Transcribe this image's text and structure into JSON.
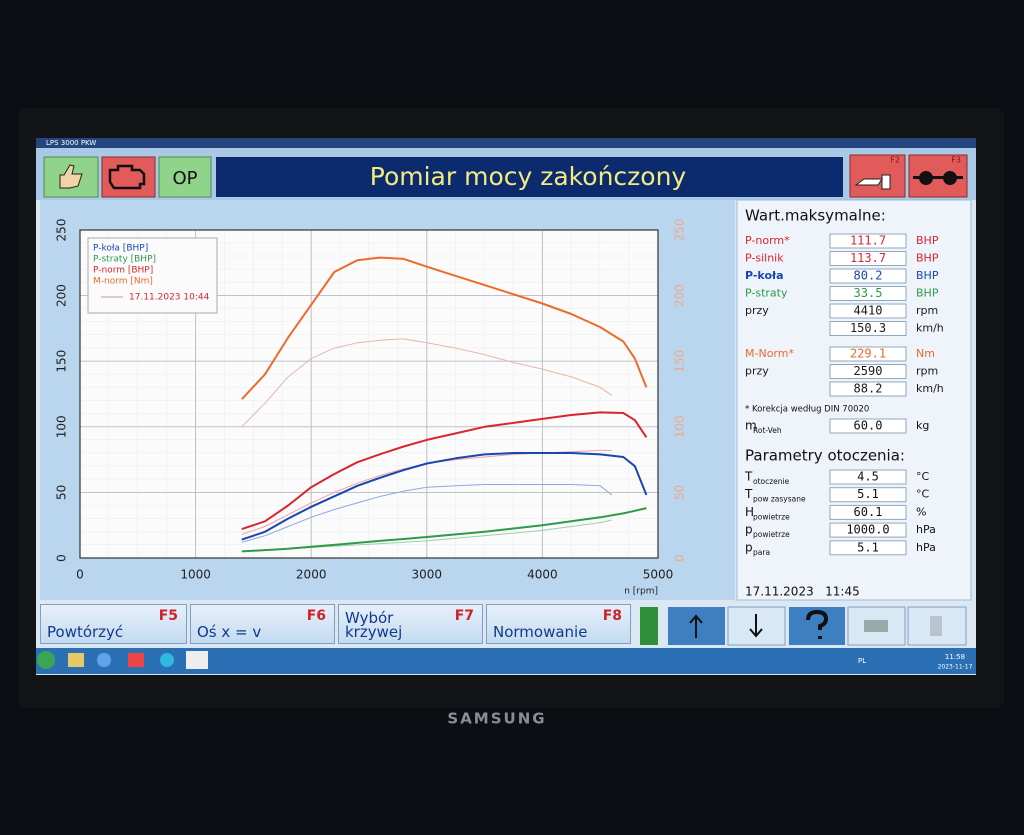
{
  "window": {
    "title": "LPS 3000 PKW"
  },
  "toolbar": {
    "op_button": "OP",
    "title": "Pomiar mocy zakończony",
    "f2": "F2",
    "f3": "F3"
  },
  "chart_data": {
    "type": "line",
    "x_label": "n [rpm]",
    "x": [
      1400,
      1600,
      1800,
      2000,
      2200,
      2400,
      2590,
      2800,
      3000,
      3250,
      3500,
      3750,
      4000,
      4250,
      4500,
      4700,
      4800,
      4900
    ],
    "xlim": [
      0,
      5000
    ],
    "xticks": [
      0,
      1000,
      2000,
      3000,
      4000,
      5000
    ],
    "ylim": [
      0,
      250
    ],
    "yticks": [
      0,
      50,
      100,
      150,
      200,
      250
    ],
    "y2lim": [
      0,
      250
    ],
    "y2ticks": [
      0,
      50,
      100,
      150,
      200,
      250
    ],
    "grid": true,
    "legend": "top-left",
    "series": [
      {
        "name": "P-koła [BHP]",
        "color": "#1a46b0",
        "values": [
          14,
          20,
          30,
          39,
          47,
          55,
          61,
          67,
          72,
          76,
          79,
          80,
          80,
          80,
          79,
          77,
          70,
          48
        ]
      },
      {
        "name": "P-straty [BHP]",
        "color": "#2e9a4a",
        "values": [
          5,
          6,
          7,
          8.5,
          10,
          11.5,
          13,
          14.5,
          16,
          18,
          20,
          22.5,
          25,
          28,
          31,
          34,
          36,
          38
        ]
      },
      {
        "name": "P-norm [BHP]",
        "color": "#d8262e",
        "values": [
          22,
          28,
          40,
          54,
          64,
          73,
          79,
          85,
          90,
          95,
          100,
          103,
          106,
          109,
          111,
          110.5,
          105,
          92
        ]
      },
      {
        "name": "M-norm [Nm]",
        "color": "#ee6a2a",
        "axis": "y2",
        "values": [
          121,
          140,
          168,
          193,
          218,
          227,
          229,
          228,
          222,
          215,
          208,
          201,
          194,
          186,
          176,
          165,
          152,
          130
        ]
      }
    ],
    "reference": {
      "label": "17.11.2023 10:44",
      "color": "#c79a86",
      "x": [
        1400,
        1600,
        1800,
        2000,
        2200,
        2400,
        2600,
        2800,
        3000,
        3250,
        3500,
        3750,
        4000,
        4250,
        4500,
        4600
      ],
      "series": [
        {
          "color": "#8fa6e0",
          "values": [
            12,
            17,
            24,
            31,
            37,
            42,
            47,
            51,
            54,
            55,
            56,
            56,
            56,
            56,
            55,
            48
          ]
        },
        {
          "color": "#9fcfa9",
          "values": [
            5,
            6,
            7,
            8,
            9,
            10,
            11,
            12,
            13,
            15,
            17,
            19,
            21,
            24,
            27,
            29
          ]
        },
        {
          "color": "#efa0a3",
          "values": [
            18,
            24,
            33,
            42,
            50,
            57,
            63,
            68,
            72,
            75,
            77,
            79,
            80,
            81,
            82,
            82
          ]
        },
        {
          "color": "#e6b7a5",
          "axis": "y2",
          "values": [
            100,
            118,
            138,
            152,
            160,
            164,
            166,
            167,
            164,
            160,
            155,
            149,
            144,
            138,
            130,
            124
          ]
        }
      ]
    }
  },
  "max_values": {
    "title": "Wart.maksymalne:",
    "rows": [
      {
        "label": "P-norm*",
        "value": "111.7",
        "unit": "BHP",
        "color": "#d8262e"
      },
      {
        "label": "P-silnik",
        "value": "113.7",
        "unit": "BHP",
        "color": "#d8262e"
      },
      {
        "label": "P-koła",
        "value": "80.2",
        "unit": "BHP",
        "color": "#1a46b0"
      },
      {
        "label": "P-straty",
        "value": "33.5",
        "unit": "BHP",
        "color": "#2e9a4a"
      },
      {
        "label": "przy",
        "value": "4410",
        "unit": "rpm",
        "color": "#1b1b1b"
      },
      {
        "value": "150.3",
        "unit": "km/h",
        "color": "#1b1b1b"
      },
      {
        "label": "M-Norm*",
        "value": "229.1",
        "unit": "Nm",
        "color": "#ee6a2a"
      },
      {
        "label": "przy",
        "value": "2590",
        "unit": "rpm",
        "color": "#1b1b1b"
      },
      {
        "value": "88.2",
        "unit": "km/h",
        "color": "#1b1b1b"
      }
    ],
    "note": "* Korekcja według DIN 70020",
    "mass": {
      "symbol": "m",
      "sub": "Rot-Veh",
      "value": "60.0",
      "unit": "kg"
    }
  },
  "environment": {
    "title": "Parametry otoczenia:",
    "rows": [
      {
        "symbol": "T",
        "sub": "otoczenie",
        "value": "4.5",
        "unit": "°C"
      },
      {
        "symbol": "T",
        "sub": "pow zasysane",
        "value": "5.1",
        "unit": "°C"
      },
      {
        "symbol": "H",
        "sub": "powietrze",
        "value": "60.1",
        "unit": "%"
      },
      {
        "symbol": "p",
        "sub": "powietrze",
        "value": "1000.0",
        "unit": "hPa"
      },
      {
        "symbol": "p",
        "sub": "para",
        "value": "5.1",
        "unit": "hPa"
      }
    ]
  },
  "status_date": "17.11.2023   11:45",
  "function_keys": [
    {
      "label": "Powtórzyć",
      "key": "F5"
    },
    {
      "label": "Oś x = v",
      "key": "F6"
    },
    {
      "label": "Wybór krzywej",
      "key": "F7"
    },
    {
      "label": "Normowanie",
      "key": "F8"
    }
  ],
  "taskbar": {
    "lang": "PL",
    "time": "11:58",
    "date": "2023-11-17"
  },
  "monitor": {
    "brand": "SAMSUNG"
  }
}
